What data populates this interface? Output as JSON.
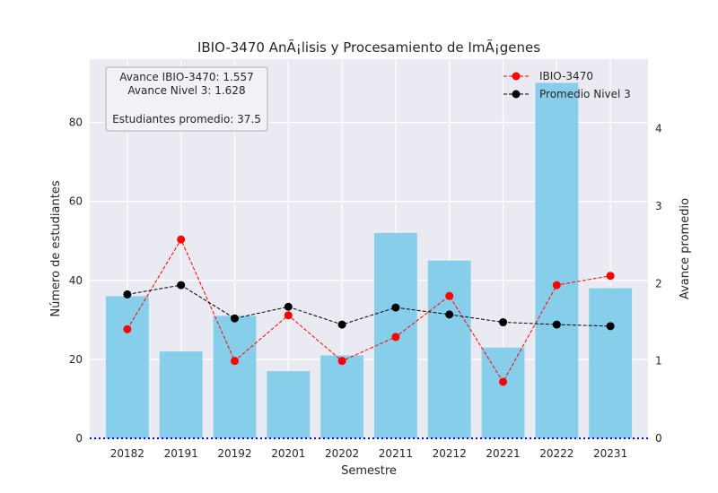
{
  "chart_data": {
    "type": "bar",
    "title": "IBIO-3470 AnÃ¡lisis y Procesamiento de ImÃ¡genes",
    "xlabel": "Semestre",
    "ylabel": "Número de estudiantes",
    "ylabel_right": "Avance promedio",
    "categories": [
      "20182",
      "20191",
      "20192",
      "20201",
      "20202",
      "20211",
      "20212",
      "20221",
      "20222",
      "20231"
    ],
    "ylim": [
      0,
      96
    ],
    "ylim_right": [
      0,
      4.9
    ],
    "yticks": [
      0,
      20,
      40,
      60,
      80
    ],
    "yticks_right": [
      0,
      1,
      2,
      3,
      4
    ],
    "grid": true,
    "bars": {
      "name": "Número de estudiantes",
      "color": "#87ceeb",
      "values": [
        36,
        22,
        31,
        17,
        21,
        52,
        45,
        23,
        90,
        38
      ]
    },
    "series": [
      {
        "name": "IBIO-3470",
        "color": "#ff0000",
        "axis": "right",
        "values": [
          1.41,
          2.57,
          1.0,
          1.59,
          1.0,
          1.31,
          1.84,
          0.73,
          1.98,
          2.1
        ]
      },
      {
        "name": "Promedio Nivel 3",
        "color": "#000000",
        "axis": "right",
        "values": [
          1.86,
          1.98,
          1.55,
          1.7,
          1.47,
          1.69,
          1.6,
          1.5,
          1.47,
          1.45
        ]
      }
    ],
    "baseline": {
      "value": 0,
      "color": "#0000ff",
      "style": "dotted"
    },
    "legend_position": "top-right",
    "info_box": {
      "lines": [
        "Avance IBIO-3470: 1.557",
        "Avance Nivel 3: 1.628",
        "",
        "Estudiantes promedio: 37.5"
      ]
    }
  }
}
